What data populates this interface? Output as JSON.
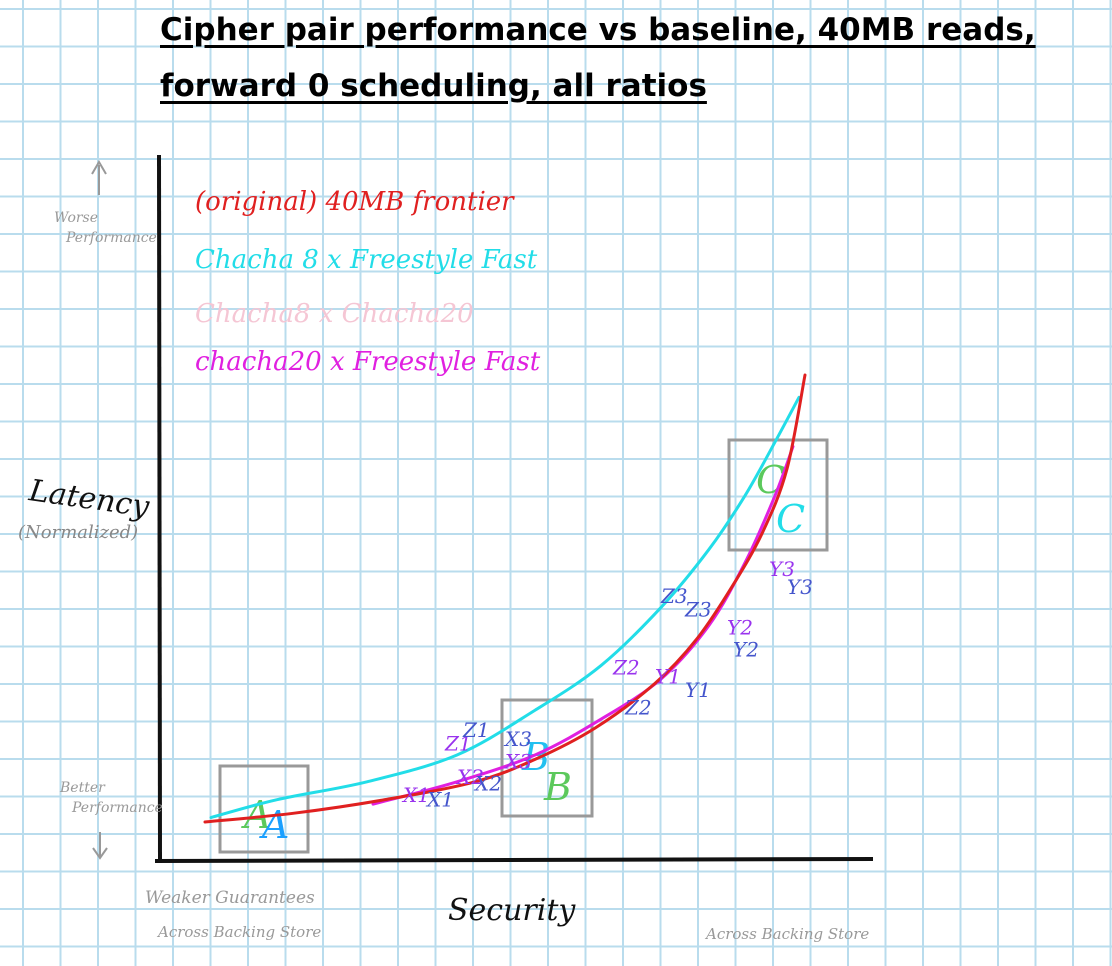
{
  "chart_data": {
    "type": "line",
    "title": "Cipher pair performance vs baseline, 40MB reads, forward 0 scheduling, all ratios",
    "xlabel": "Security",
    "ylabel": "Latency",
    "ylabel_sub": "(Normalized)",
    "y_top_hint": "Worse Performance",
    "y_bottom_hint": "Better Performance",
    "x_left_hint_line1": "Weaker Guarantees",
    "x_left_hint_line2": "Across Backing Store",
    "x_right_hint": "Across Backing Store",
    "grid": true,
    "legend_position": "top-left",
    "series": [
      {
        "name": "(original) 40MB frontier",
        "color": "#e02020",
        "x": [
          0.0,
          0.15,
          0.3,
          0.45,
          0.55,
          0.65,
          0.75,
          0.82,
          0.88,
          0.93,
          0.97,
          1.0
        ],
        "y": [
          0.0,
          0.02,
          0.05,
          0.09,
          0.14,
          0.21,
          0.31,
          0.41,
          0.53,
          0.65,
          0.79,
          1.0
        ]
      },
      {
        "name": "Chacha 8 x Freestyle Fast",
        "color": "#22dde8",
        "x": [
          0.01,
          0.12,
          0.27,
          0.42,
          0.55,
          0.66,
          0.76,
          0.84,
          0.9,
          0.95,
          0.99
        ],
        "y": [
          0.01,
          0.05,
          0.09,
          0.15,
          0.25,
          0.35,
          0.48,
          0.61,
          0.73,
          0.85,
          0.95
        ]
      },
      {
        "name": "Chacha8 x Chacha20",
        "color": "#f5c6d4",
        "x": [],
        "y": []
      },
      {
        "name": "chacha20 x Freestyle Fast",
        "color": "#e020e0",
        "x": [
          0.28,
          0.42,
          0.55,
          0.66,
          0.76,
          0.84,
          0.9,
          0.95,
          0.98
        ],
        "y": [
          0.04,
          0.09,
          0.15,
          0.23,
          0.32,
          0.44,
          0.58,
          0.73,
          0.84
        ]
      }
    ],
    "regions": [
      {
        "label": "A",
        "label_colors": [
          "#5cc95c",
          "#1aa0ff"
        ]
      },
      {
        "label": "B",
        "label_colors": [
          "#22c0f0",
          "#5cc95c"
        ]
      },
      {
        "label": "C",
        "label_colors": [
          "#5cc95c",
          "#22dde8"
        ]
      }
    ],
    "annotations": [
      {
        "text": "X1",
        "color": "#9933ee",
        "x": 0.33,
        "y": 0.045
      },
      {
        "text": "X1",
        "color": "#4455cc",
        "x": 0.37,
        "y": 0.035
      },
      {
        "text": "X2",
        "color": "#9933ee",
        "x": 0.42,
        "y": 0.085
      },
      {
        "text": "X2",
        "color": "#4455cc",
        "x": 0.45,
        "y": 0.07
      },
      {
        "text": "X3",
        "color": "#9933ee",
        "x": 0.5,
        "y": 0.12
      },
      {
        "text": "X3",
        "color": "#4455cc",
        "x": 0.5,
        "y": 0.17
      },
      {
        "text": "Z1",
        "color": "#9933ee",
        "x": 0.4,
        "y": 0.16
      },
      {
        "text": "Z1",
        "color": "#4455cc",
        "x": 0.43,
        "y": 0.19
      },
      {
        "text": "Z2",
        "color": "#9933ee",
        "x": 0.68,
        "y": 0.33
      },
      {
        "text": "Z2",
        "color": "#4455cc",
        "x": 0.7,
        "y": 0.24
      },
      {
        "text": "Z3",
        "color": "#4455cc",
        "x": 0.76,
        "y": 0.49
      },
      {
        "text": "Z3",
        "color": "#4455cc",
        "x": 0.8,
        "y": 0.46
      },
      {
        "text": "Y1",
        "color": "#9933ee",
        "x": 0.75,
        "y": 0.31
      },
      {
        "text": "Y1",
        "color": "#4455cc",
        "x": 0.8,
        "y": 0.28
      },
      {
        "text": "Y2",
        "color": "#9933ee",
        "x": 0.87,
        "y": 0.42
      },
      {
        "text": "Y2",
        "color": "#4455cc",
        "x": 0.88,
        "y": 0.37
      },
      {
        "text": "Y3",
        "color": "#9933ee",
        "x": 0.94,
        "y": 0.55
      },
      {
        "text": "Y3",
        "color": "#4455cc",
        "x": 0.97,
        "y": 0.51
      }
    ]
  }
}
